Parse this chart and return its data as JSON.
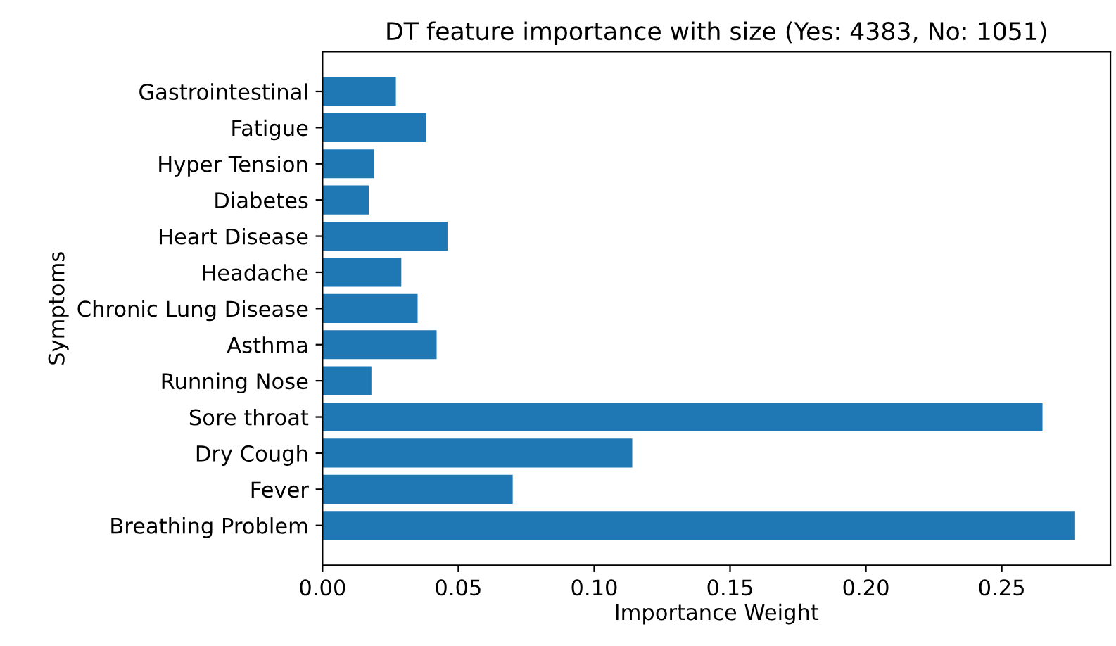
{
  "chart_data": {
    "type": "bar",
    "orientation": "horizontal",
    "title": "DT feature importance with size (Yes: 4383, No: 1051)",
    "xlabel": "Importance Weight",
    "ylabel": "Symptoms",
    "categories": [
      "Gastrointestinal",
      "Fatigue",
      "Hyper Tension",
      "Diabetes",
      "Heart Disease",
      "Headache",
      "Chronic Lung Disease",
      "Asthma",
      "Running Nose",
      "Sore throat",
      "Dry Cough",
      "Fever",
      "Breathing Problem"
    ],
    "values": [
      0.027,
      0.038,
      0.019,
      0.017,
      0.046,
      0.029,
      0.035,
      0.042,
      0.018,
      0.265,
      0.114,
      0.07,
      0.277
    ],
    "color": "#1f77b4",
    "xlim": [
      0,
      0.29
    ],
    "xticks": [
      {
        "value": 0,
        "label": "0.00"
      },
      0.05,
      {
        "value": 0.1,
        "label": "0.10"
      },
      0.15,
      {
        "value": 0.2,
        "label": "0.20"
      },
      0.25
    ],
    "grid": false
  }
}
